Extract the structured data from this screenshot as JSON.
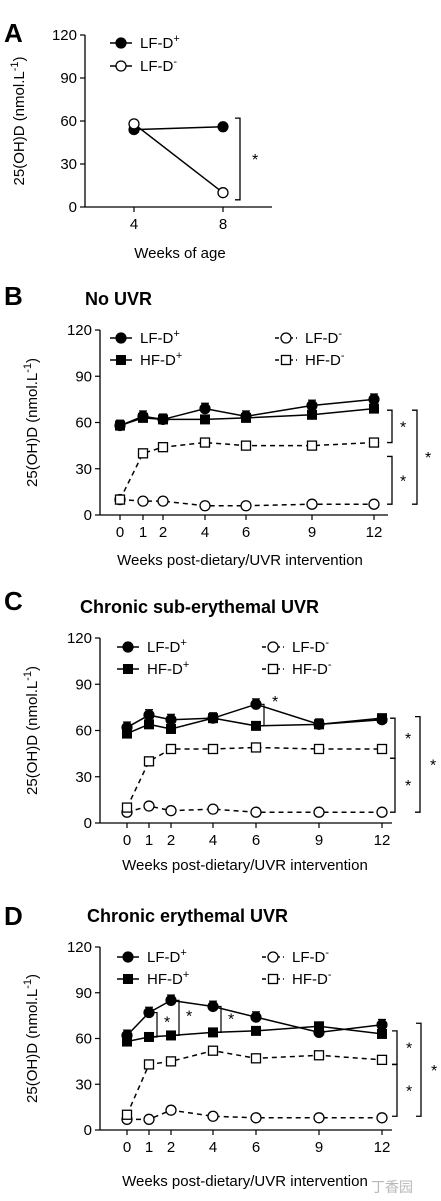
{
  "chart_data": [
    {
      "panel": "A",
      "type": "line",
      "title": "",
      "xlabel": "Weeks of age",
      "ylabel": "25(OH)D (nmol.L-1)",
      "ylim": [
        0,
        120
      ],
      "yticks": [
        0,
        30,
        60,
        90,
        120
      ],
      "xticks": [
        4,
        8
      ],
      "series": [
        {
          "name": "LF-D+",
          "marker": "filled-circle",
          "line": "solid",
          "x": [
            4,
            8
          ],
          "y": [
            54,
            56
          ]
        },
        {
          "name": "LF-D-",
          "marker": "open-circle",
          "line": "solid",
          "x": [
            4,
            8
          ],
          "y": [
            58,
            10
          ]
        }
      ],
      "annotations": [
        {
          "text": "*",
          "between": [
            "LF-D+",
            "LF-D-"
          ],
          "at_x": 8
        }
      ]
    },
    {
      "panel": "B",
      "type": "line",
      "title": "No UVR",
      "xlabel": "Weeks post-dietary/UVR intervention",
      "ylabel": "25(OH)D (nmol.L-1)",
      "ylim": [
        0,
        120
      ],
      "yticks": [
        0,
        30,
        60,
        90,
        120
      ],
      "xticks": [
        0,
        1,
        2,
        4,
        6,
        9,
        12
      ],
      "series": [
        {
          "name": "LF-D+",
          "marker": "filled-circle",
          "line": "solid",
          "x": [
            0,
            1,
            2,
            4,
            6,
            9,
            12
          ],
          "y": [
            58,
            64,
            62,
            69,
            64,
            71,
            75
          ]
        },
        {
          "name": "HF-D+",
          "marker": "filled-square",
          "line": "solid",
          "x": [
            0,
            1,
            2,
            4,
            6,
            9,
            12
          ],
          "y": [
            58,
            63,
            62,
            62,
            63,
            65,
            69
          ]
        },
        {
          "name": "LF-D-",
          "marker": "open-circle",
          "line": "dashed",
          "x": [
            0,
            1,
            2,
            4,
            6,
            9,
            12
          ],
          "y": [
            10,
            9,
            9,
            6,
            6,
            7,
            7
          ]
        },
        {
          "name": "HF-D-",
          "marker": "open-square",
          "line": "dashed",
          "x": [
            0,
            1,
            2,
            4,
            6,
            9,
            12
          ],
          "y": [
            10,
            40,
            44,
            47,
            45,
            45,
            47
          ]
        }
      ],
      "annotations": [
        {
          "text": "*",
          "between": [
            "D+ groups",
            "HF-D-"
          ]
        },
        {
          "text": "*",
          "between": [
            "HF-D-",
            "LF-D-"
          ]
        },
        {
          "text": "*",
          "between": [
            "D+ groups",
            "LF-D-"
          ]
        }
      ]
    },
    {
      "panel": "C",
      "type": "line",
      "title": "Chronic sub-erythemal UVR",
      "xlabel": "Weeks post-dietary/UVR intervention",
      "ylabel": "25(OH)D (nmol.L-1)",
      "ylim": [
        0,
        120
      ],
      "yticks": [
        0,
        30,
        60,
        90,
        120
      ],
      "xticks": [
        0,
        1,
        2,
        4,
        6,
        9,
        12
      ],
      "series": [
        {
          "name": "LF-D+",
          "marker": "filled-circle",
          "line": "solid",
          "x": [
            0,
            1,
            2,
            4,
            6,
            9,
            12
          ],
          "y": [
            62,
            70,
            67,
            68,
            77,
            64,
            67
          ]
        },
        {
          "name": "HF-D+",
          "marker": "filled-square",
          "line": "solid",
          "x": [
            0,
            1,
            2,
            4,
            6,
            9,
            12
          ],
          "y": [
            58,
            64,
            61,
            68,
            63,
            64,
            68
          ]
        },
        {
          "name": "LF-D-",
          "marker": "open-circle",
          "line": "dashed",
          "x": [
            0,
            1,
            2,
            4,
            6,
            9,
            12
          ],
          "y": [
            7,
            11,
            8,
            9,
            7,
            7,
            7
          ]
        },
        {
          "name": "HF-D-",
          "marker": "open-square",
          "line": "dashed",
          "x": [
            0,
            1,
            2,
            4,
            6,
            9,
            12
          ],
          "y": [
            10,
            40,
            48,
            48,
            49,
            48,
            48
          ]
        }
      ],
      "annotations": [
        {
          "text": "*",
          "at_x": 6,
          "between": [
            "LF-D+",
            "HF-D+"
          ]
        },
        {
          "text": "*",
          "between": [
            "D+ groups",
            "HF-D-"
          ]
        },
        {
          "text": "*",
          "between": [
            "HF-D-",
            "LF-D-"
          ]
        },
        {
          "text": "*",
          "between": [
            "D+ groups",
            "LF-D-"
          ]
        }
      ]
    },
    {
      "panel": "D",
      "type": "line",
      "title": "Chronic erythemal UVR",
      "xlabel": "Weeks post-dietary/UVR intervention",
      "ylabel": "25(OH)D (nmol.L-1)",
      "ylim": [
        0,
        120
      ],
      "yticks": [
        0,
        30,
        60,
        90,
        120
      ],
      "xticks": [
        0,
        1,
        2,
        4,
        6,
        9,
        12
      ],
      "series": [
        {
          "name": "LF-D+",
          "marker": "filled-circle",
          "line": "solid",
          "x": [
            0,
            1,
            2,
            4,
            6,
            9,
            12
          ],
          "y": [
            62,
            77,
            85,
            81,
            74,
            64,
            69
          ]
        },
        {
          "name": "HF-D+",
          "marker": "filled-square",
          "line": "solid",
          "x": [
            0,
            1,
            2,
            4,
            6,
            9,
            12
          ],
          "y": [
            58,
            61,
            62,
            64,
            65,
            68,
            63
          ]
        },
        {
          "name": "LF-D-",
          "marker": "open-circle",
          "line": "dashed",
          "x": [
            0,
            1,
            2,
            4,
            6,
            9,
            12
          ],
          "y": [
            7,
            7,
            13,
            9,
            8,
            8,
            8
          ]
        },
        {
          "name": "HF-D-",
          "marker": "open-square",
          "line": "dashed",
          "x": [
            0,
            1,
            2,
            4,
            6,
            9,
            12
          ],
          "y": [
            10,
            43,
            45,
            52,
            47,
            49,
            46
          ]
        }
      ],
      "annotations": [
        {
          "text": "*",
          "at_x": 1,
          "between": [
            "LF-D+",
            "HF-D+"
          ]
        },
        {
          "text": "*",
          "at_x": 2,
          "between": [
            "LF-D+",
            "HF-D+"
          ]
        },
        {
          "text": "*",
          "at_x": 4,
          "between": [
            "LF-D+",
            "HF-D+"
          ]
        },
        {
          "text": "*",
          "between": [
            "D+ groups",
            "HF-D-"
          ]
        },
        {
          "text": "*",
          "between": [
            "HF-D-",
            "LF-D-"
          ]
        },
        {
          "text": "*",
          "between": [
            "D+ groups",
            "LF-D-"
          ]
        }
      ]
    }
  ],
  "legend_labels": {
    "LF-D+": {
      "base": "LF-D",
      "sup": "+"
    },
    "LF-D-": {
      "base": "LF-D",
      "sup": "-"
    },
    "HF-D+": {
      "base": "HF-D",
      "sup": "+"
    },
    "HF-D-": {
      "base": "HF-D",
      "sup": "-"
    }
  },
  "ylabel_parts": {
    "base": "25(OH)D (nmol.L",
    "sup": "-1",
    "close": ")"
  },
  "watermark": "丁香园"
}
